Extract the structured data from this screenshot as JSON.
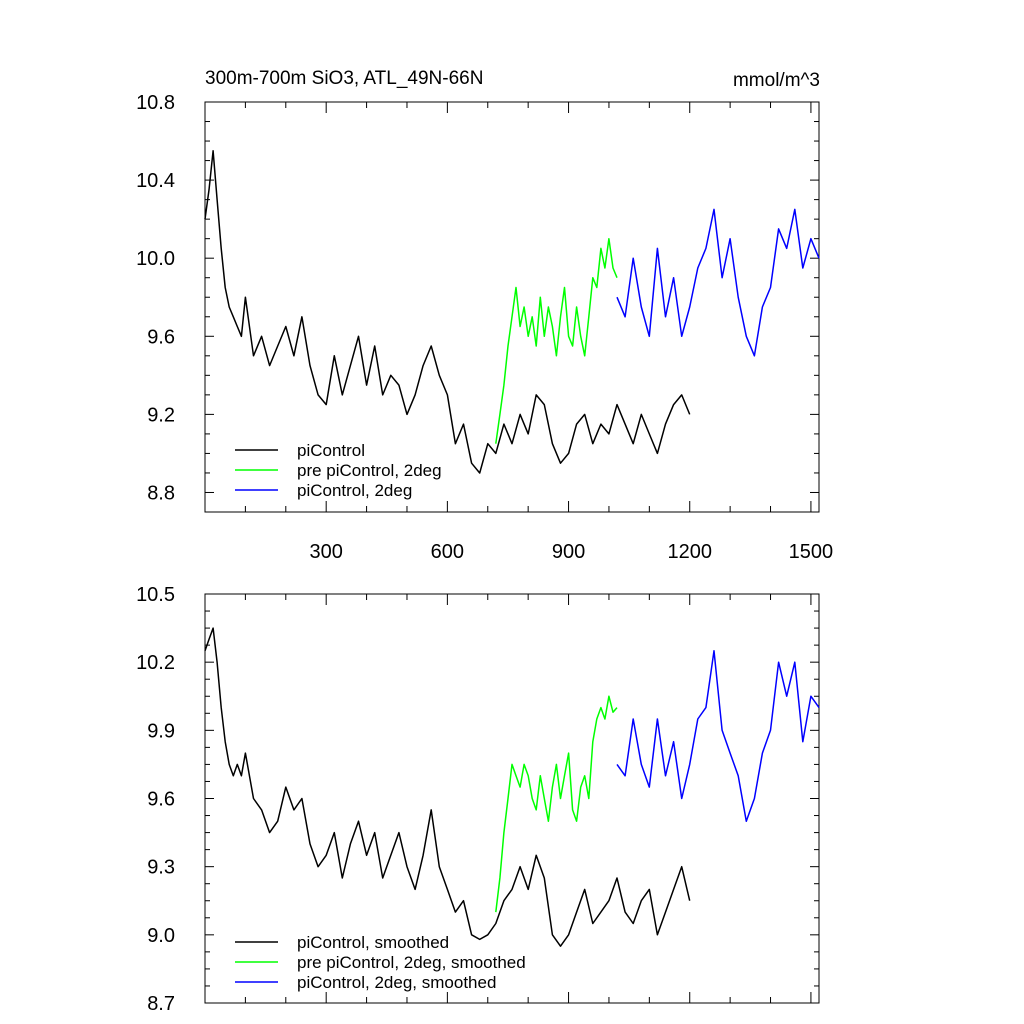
{
  "chart_data": [
    {
      "type": "line",
      "title": "300m-700m SiO3, ATL_49N-66N",
      "units": "mmol/m^3",
      "xlim": [
        0,
        1520
      ],
      "ylim": [
        8.7,
        10.8
      ],
      "xticks": [
        300,
        600,
        900,
        1200,
        1500
      ],
      "xtick_labels": [
        "300",
        "600",
        "900",
        "1200",
        "1500"
      ],
      "yticks": [
        8.8,
        9.2,
        9.6,
        10.0,
        10.4,
        10.8
      ],
      "ytick_labels": [
        "8.8",
        "9.2",
        "9.6",
        "10.0",
        "10.4",
        "10.8"
      ],
      "legend_position": "bottom-left",
      "grid": false,
      "series": [
        {
          "name": "piControl",
          "color": "#000000",
          "x": [
            0,
            10,
            20,
            30,
            40,
            50,
            60,
            70,
            80,
            90,
            100,
            120,
            140,
            160,
            180,
            200,
            220,
            240,
            260,
            280,
            300,
            320,
            340,
            360,
            380,
            400,
            420,
            440,
            460,
            480,
            500,
            520,
            540,
            560,
            580,
            600,
            620,
            640,
            660,
            680,
            700,
            720,
            740,
            760,
            780,
            800,
            820,
            840,
            860,
            880,
            900,
            920,
            940,
            960,
            980,
            1000,
            1020,
            1040,
            1060,
            1080,
            1100,
            1120,
            1140,
            1160,
            1180,
            1200
          ],
          "y": [
            10.2,
            10.35,
            10.55,
            10.3,
            10.05,
            9.85,
            9.75,
            9.7,
            9.65,
            9.6,
            9.8,
            9.5,
            9.6,
            9.45,
            9.55,
            9.65,
            9.5,
            9.7,
            9.45,
            9.3,
            9.25,
            9.5,
            9.3,
            9.45,
            9.6,
            9.35,
            9.55,
            9.3,
            9.4,
            9.35,
            9.2,
            9.3,
            9.45,
            9.55,
            9.4,
            9.3,
            9.05,
            9.15,
            8.95,
            8.9,
            9.05,
            9.0,
            9.15,
            9.05,
            9.2,
            9.1,
            9.3,
            9.25,
            9.05,
            8.95,
            9.0,
            9.15,
            9.2,
            9.05,
            9.15,
            9.1,
            9.25,
            9.15,
            9.05,
            9.2,
            9.1,
            9.0,
            9.15,
            9.25,
            9.3,
            9.2
          ]
        },
        {
          "name": "pre piControl, 2deg",
          "color": "#00ff00",
          "x": [
            720,
            730,
            740,
            750,
            760,
            770,
            780,
            790,
            800,
            810,
            820,
            830,
            840,
            850,
            860,
            870,
            880,
            890,
            900,
            910,
            920,
            930,
            940,
            950,
            960,
            970,
            980,
            990,
            1000,
            1010,
            1020
          ],
          "y": [
            9.05,
            9.2,
            9.35,
            9.55,
            9.7,
            9.85,
            9.65,
            9.75,
            9.6,
            9.7,
            9.55,
            9.8,
            9.6,
            9.75,
            9.65,
            9.5,
            9.7,
            9.85,
            9.6,
            9.55,
            9.75,
            9.6,
            9.5,
            9.7,
            9.9,
            9.85,
            10.05,
            9.95,
            10.1,
            9.95,
            9.9
          ]
        },
        {
          "name": "piControl, 2deg",
          "color": "#0000ff",
          "x": [
            1020,
            1040,
            1060,
            1080,
            1100,
            1120,
            1140,
            1160,
            1180,
            1200,
            1220,
            1240,
            1260,
            1280,
            1300,
            1320,
            1340,
            1360,
            1380,
            1400,
            1420,
            1440,
            1460,
            1480,
            1500,
            1520
          ],
          "y": [
            9.8,
            9.7,
            10.0,
            9.75,
            9.6,
            10.05,
            9.7,
            9.9,
            9.6,
            9.75,
            9.95,
            10.05,
            10.25,
            9.9,
            10.1,
            9.8,
            9.6,
            9.5,
            9.75,
            9.85,
            10.15,
            10.05,
            10.25,
            9.95,
            10.1,
            10.0
          ]
        }
      ]
    },
    {
      "type": "line",
      "xlim": [
        0,
        1520
      ],
      "ylim": [
        8.7,
        10.5
      ],
      "yticks": [
        8.7,
        9.0,
        9.3,
        9.6,
        9.9,
        10.2,
        10.5
      ],
      "ytick_labels": [
        "8.7",
        "9.0",
        "9.3",
        "9.6",
        "9.9",
        "10.2",
        "10.5"
      ],
      "legend_position": "bottom-left",
      "grid": false,
      "series": [
        {
          "name": "piControl, smoothed",
          "color": "#000000",
          "x": [
            0,
            10,
            20,
            30,
            40,
            50,
            60,
            70,
            80,
            90,
            100,
            120,
            140,
            160,
            180,
            200,
            220,
            240,
            260,
            280,
            300,
            320,
            340,
            360,
            380,
            400,
            420,
            440,
            460,
            480,
            500,
            520,
            540,
            560,
            580,
            600,
            620,
            640,
            660,
            680,
            700,
            720,
            740,
            760,
            780,
            800,
            820,
            840,
            860,
            880,
            900,
            920,
            940,
            960,
            980,
            1000,
            1020,
            1040,
            1060,
            1080,
            1100,
            1120,
            1140,
            1160,
            1180,
            1200
          ],
          "y": [
            10.25,
            10.3,
            10.35,
            10.2,
            10.0,
            9.85,
            9.75,
            9.7,
            9.75,
            9.7,
            9.8,
            9.6,
            9.55,
            9.45,
            9.5,
            9.65,
            9.55,
            9.6,
            9.4,
            9.3,
            9.35,
            9.45,
            9.25,
            9.4,
            9.5,
            9.35,
            9.45,
            9.25,
            9.35,
            9.45,
            9.3,
            9.2,
            9.35,
            9.55,
            9.3,
            9.2,
            9.1,
            9.15,
            9.0,
            8.98,
            9.0,
            9.05,
            9.15,
            9.2,
            9.3,
            9.2,
            9.35,
            9.25,
            9.0,
            8.95,
            9.0,
            9.1,
            9.2,
            9.05,
            9.1,
            9.15,
            9.25,
            9.1,
            9.05,
            9.15,
            9.2,
            9.0,
            9.1,
            9.2,
            9.3,
            9.15
          ]
        },
        {
          "name": "pre piControl, 2deg, smoothed",
          "color": "#00ff00",
          "x": [
            720,
            730,
            740,
            750,
            760,
            770,
            780,
            790,
            800,
            810,
            820,
            830,
            840,
            850,
            860,
            870,
            880,
            890,
            900,
            910,
            920,
            930,
            940,
            950,
            960,
            970,
            980,
            990,
            1000,
            1010,
            1020
          ],
          "y": [
            9.1,
            9.25,
            9.45,
            9.6,
            9.75,
            9.7,
            9.65,
            9.75,
            9.7,
            9.6,
            9.55,
            9.7,
            9.6,
            9.5,
            9.65,
            9.75,
            9.6,
            9.7,
            9.8,
            9.55,
            9.5,
            9.65,
            9.7,
            9.6,
            9.85,
            9.95,
            10.0,
            9.95,
            10.05,
            9.98,
            10.0
          ]
        },
        {
          "name": "piControl, 2deg, smoothed",
          "color": "#0000ff",
          "x": [
            1020,
            1040,
            1060,
            1080,
            1100,
            1120,
            1140,
            1160,
            1180,
            1200,
            1220,
            1240,
            1260,
            1280,
            1300,
            1320,
            1340,
            1360,
            1380,
            1400,
            1420,
            1440,
            1460,
            1480,
            1500,
            1520
          ],
          "y": [
            9.75,
            9.7,
            9.95,
            9.75,
            9.65,
            9.95,
            9.7,
            9.85,
            9.6,
            9.75,
            9.95,
            10.0,
            10.25,
            9.9,
            9.8,
            9.7,
            9.5,
            9.6,
            9.8,
            9.9,
            10.2,
            10.05,
            10.2,
            9.85,
            10.05,
            10.0
          ]
        }
      ]
    }
  ]
}
